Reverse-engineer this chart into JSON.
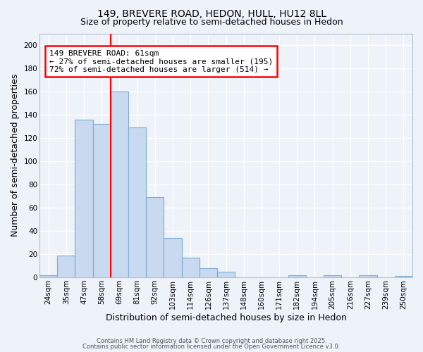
{
  "title1": "149, BREVERE ROAD, HEDON, HULL, HU12 8LL",
  "title2": "Size of property relative to semi-detached houses in Hedon",
  "xlabel": "Distribution of semi-detached houses by size in Hedon",
  "ylabel": "Number of semi-detached properties",
  "categories": [
    "24sqm",
    "35sqm",
    "47sqm",
    "58sqm",
    "69sqm",
    "81sqm",
    "92sqm",
    "103sqm",
    "114sqm",
    "126sqm",
    "137sqm",
    "148sqm",
    "160sqm",
    "171sqm",
    "182sqm",
    "194sqm",
    "205sqm",
    "216sqm",
    "227sqm",
    "239sqm",
    "250sqm"
  ],
  "bar_heights": [
    2,
    19,
    136,
    132,
    160,
    129,
    69,
    34,
    17,
    8,
    5,
    0,
    0,
    0,
    2,
    0,
    2,
    0,
    2,
    0,
    1
  ],
  "bar_color": "#c9d9f0",
  "bar_edge_color": "#7aadd4",
  "ylim": [
    0,
    210
  ],
  "yticks": [
    0,
    20,
    40,
    60,
    80,
    100,
    120,
    140,
    160,
    180,
    200
  ],
  "annotation_title": "149 BREVERE ROAD: 61sqm",
  "annotation_line1": "← 27% of semi-detached houses are smaller (195)",
  "annotation_line2": "72% of semi-detached houses are larger (514) →",
  "redline_index": 3.5,
  "footer1": "Contains HM Land Registry data © Crown copyright and database right 2025.",
  "footer2": "Contains public sector information licensed under the Open Government Licence v3.0.",
  "bg_color": "#eef2f9",
  "grid_color": "#ffffff",
  "title_fontsize": 10,
  "subtitle_fontsize": 9,
  "axis_label_fontsize": 9,
  "tick_fontsize": 7.5,
  "annot_fontsize": 8
}
